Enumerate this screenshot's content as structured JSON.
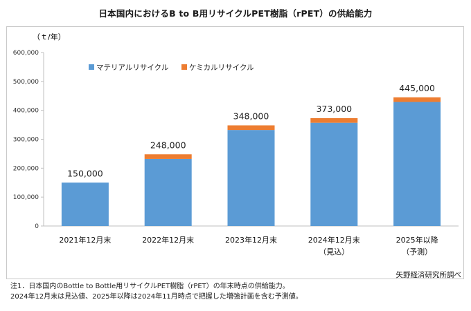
{
  "title": "日本国内におけるB to B用リサイクルPET樹脂（rPET）の供給能力",
  "source": "矢野経済研究所調べ",
  "notes": [
    "注1．日本国内のBottle to Bottle用リサイクルPET樹脂（rPET）の年末時点の供給能力。",
    "2024年12月末は見込値、2025年以降は2024年11月時点で把握した増強計画を含む予測値。"
  ],
  "colors": {
    "material": "#5b9bd5",
    "chemical": "#ed7d31",
    "axis": "#bfbfbf"
  },
  "chart_data": {
    "type": "bar",
    "stacked": true,
    "unit_label": "（ｔ/年）",
    "categories": [
      "2021年12月末",
      "2022年12月末",
      "2023年12月末",
      "2024年12月末",
      "2025年以降"
    ],
    "category_sublabels": [
      "",
      "",
      "",
      "（見込）",
      "（予測）"
    ],
    "y_ticks": [
      "0",
      "100,000",
      "200,000",
      "300,000",
      "400,000",
      "500,000",
      "600,000"
    ],
    "ylim": [
      0,
      600000
    ],
    "grid": false,
    "legend_position": "top-left",
    "series": [
      {
        "name": "マテリアルリサイクル",
        "values": [
          150000,
          232000,
          332000,
          357000,
          429000
        ]
      },
      {
        "name": "ケミカルリサイクル",
        "values": [
          0,
          16000,
          16000,
          16000,
          16000
        ]
      }
    ],
    "totals": [
      150000,
      248000,
      348000,
      373000,
      445000
    ],
    "total_labels": [
      "150,000",
      "248,000",
      "348,000",
      "373,000",
      "445,000"
    ]
  }
}
